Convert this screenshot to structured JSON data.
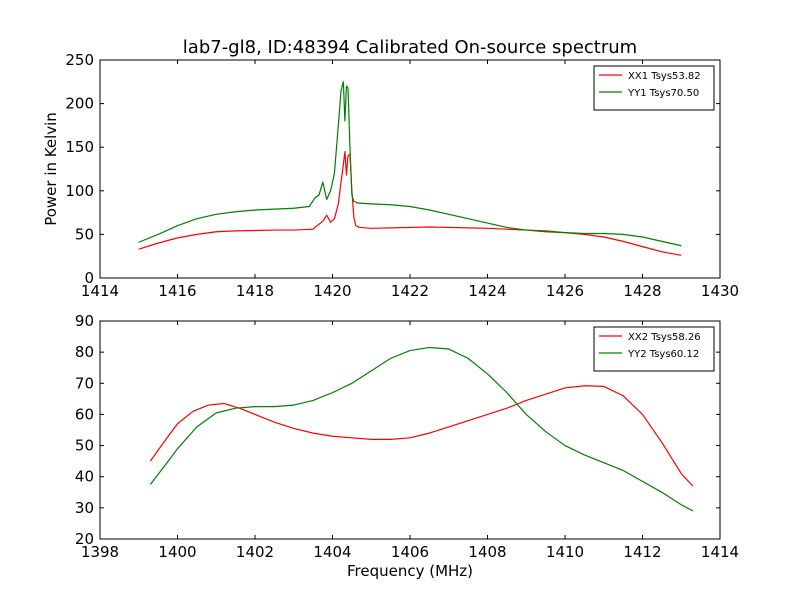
{
  "figure": {
    "title": "lab7-gl8, ID:48394 Calibrated On-source spectrum",
    "background": "#ffffff"
  },
  "chart_data": [
    {
      "type": "line",
      "title": "lab7-gl8, ID:48394 Calibrated On-source spectrum",
      "xlabel": "",
      "ylabel": "Power in Kelvin",
      "xlim": [
        1414,
        1430
      ],
      "ylim": [
        0,
        250
      ],
      "xticks": [
        1414,
        1416,
        1418,
        1420,
        1422,
        1424,
        1426,
        1428,
        1430
      ],
      "yticks": [
        0,
        50,
        100,
        150,
        200,
        250
      ],
      "legend_position": "top-right",
      "grid": false,
      "series": [
        {
          "name": "XX1 Tsys53.82",
          "color": "#ff0000",
          "x": [
            1415.0,
            1415.5,
            1416.0,
            1416.5,
            1417.0,
            1417.5,
            1418.0,
            1418.5,
            1419.0,
            1419.5,
            1419.6,
            1419.75,
            1419.85,
            1419.95,
            1420.05,
            1420.15,
            1420.22,
            1420.28,
            1420.32,
            1420.36,
            1420.4,
            1420.45,
            1420.5,
            1420.55,
            1420.6,
            1420.7,
            1421.0,
            1421.5,
            1422.0,
            1422.5,
            1423.0,
            1423.5,
            1424.0,
            1424.5,
            1425.0,
            1425.5,
            1426.0,
            1426.5,
            1427.0,
            1427.5,
            1428.0,
            1428.5,
            1429.0
          ],
          "y": [
            33,
            40,
            46,
            50,
            53,
            54,
            54.5,
            55,
            55,
            56,
            60,
            65,
            72,
            64,
            68,
            85,
            110,
            130,
            145,
            118,
            140,
            142,
            100,
            70,
            60,
            58,
            57,
            57.5,
            58,
            58.5,
            58,
            57.5,
            57,
            56,
            55,
            54,
            52,
            50,
            47,
            42,
            36,
            30,
            26
          ]
        },
        {
          "name": "YY1 Tsys70.50",
          "color": "#008000",
          "x": [
            1415.0,
            1415.5,
            1416.0,
            1416.5,
            1417.0,
            1417.5,
            1418.0,
            1418.5,
            1419.0,
            1419.4,
            1419.55,
            1419.65,
            1419.75,
            1419.85,
            1419.95,
            1420.05,
            1420.15,
            1420.22,
            1420.28,
            1420.32,
            1420.36,
            1420.4,
            1420.45,
            1420.5,
            1420.55,
            1420.65,
            1421.0,
            1421.5,
            1422.0,
            1422.5,
            1423.0,
            1423.5,
            1424.0,
            1424.5,
            1425.0,
            1425.5,
            1426.0,
            1426.5,
            1427.0,
            1427.5,
            1428.0,
            1428.5,
            1429.0
          ],
          "y": [
            41,
            50,
            60,
            68,
            73,
            76,
            78,
            79,
            80,
            82,
            92,
            95,
            110,
            90,
            100,
            120,
            175,
            215,
            225,
            180,
            220,
            218,
            150,
            95,
            88,
            86,
            85,
            84,
            82,
            78,
            73,
            68,
            63,
            58,
            55,
            53,
            52,
            51,
            51,
            50,
            47,
            42,
            37
          ]
        }
      ]
    },
    {
      "type": "line",
      "title": "",
      "xlabel": "Frequency (MHz)",
      "ylabel": "",
      "xlim": [
        1398,
        1414
      ],
      "ylim": [
        20,
        90
      ],
      "xticks": [
        1398,
        1400,
        1402,
        1404,
        1406,
        1408,
        1410,
        1412,
        1414
      ],
      "yticks": [
        20,
        30,
        40,
        50,
        60,
        70,
        80,
        90
      ],
      "legend_position": "top-right",
      "grid": false,
      "series": [
        {
          "name": "XX2 Tsys58.26",
          "color": "#ff0000",
          "x": [
            1399.3,
            1399.7,
            1400.0,
            1400.4,
            1400.8,
            1401.2,
            1401.6,
            1402.0,
            1402.5,
            1403.0,
            1403.5,
            1404.0,
            1404.5,
            1405.0,
            1405.5,
            1406.0,
            1406.5,
            1407.0,
            1407.5,
            1408.0,
            1408.5,
            1409.0,
            1409.5,
            1410.0,
            1410.5,
            1411.0,
            1411.5,
            1412.0,
            1412.5,
            1413.0,
            1413.3
          ],
          "y": [
            45,
            52,
            57,
            61,
            63,
            63.5,
            62,
            60,
            57.5,
            55.5,
            54,
            53,
            52.5,
            52,
            52,
            52.5,
            54,
            56,
            58,
            60,
            62,
            64.5,
            66.5,
            68.5,
            69.2,
            69,
            66,
            60,
            51,
            41,
            37
          ]
        },
        {
          "name": "YY2 Tsys60.12",
          "color": "#008000",
          "x": [
            1399.3,
            1399.7,
            1400.0,
            1400.5,
            1401.0,
            1401.5,
            1402.0,
            1402.5,
            1403.0,
            1403.5,
            1404.0,
            1404.5,
            1405.0,
            1405.5,
            1406.0,
            1406.5,
            1407.0,
            1407.5,
            1408.0,
            1408.5,
            1409.0,
            1409.5,
            1410.0,
            1410.5,
            1411.0,
            1411.5,
            1412.0,
            1412.5,
            1413.0,
            1413.3
          ],
          "y": [
            37.5,
            44,
            49,
            56,
            60.5,
            62,
            62.5,
            62.5,
            63,
            64.5,
            67,
            70,
            74,
            78,
            80.5,
            81.5,
            81,
            78,
            73,
            67,
            60,
            54.5,
            50,
            47,
            44.5,
            42,
            38.5,
            35,
            31,
            29
          ]
        }
      ]
    }
  ]
}
